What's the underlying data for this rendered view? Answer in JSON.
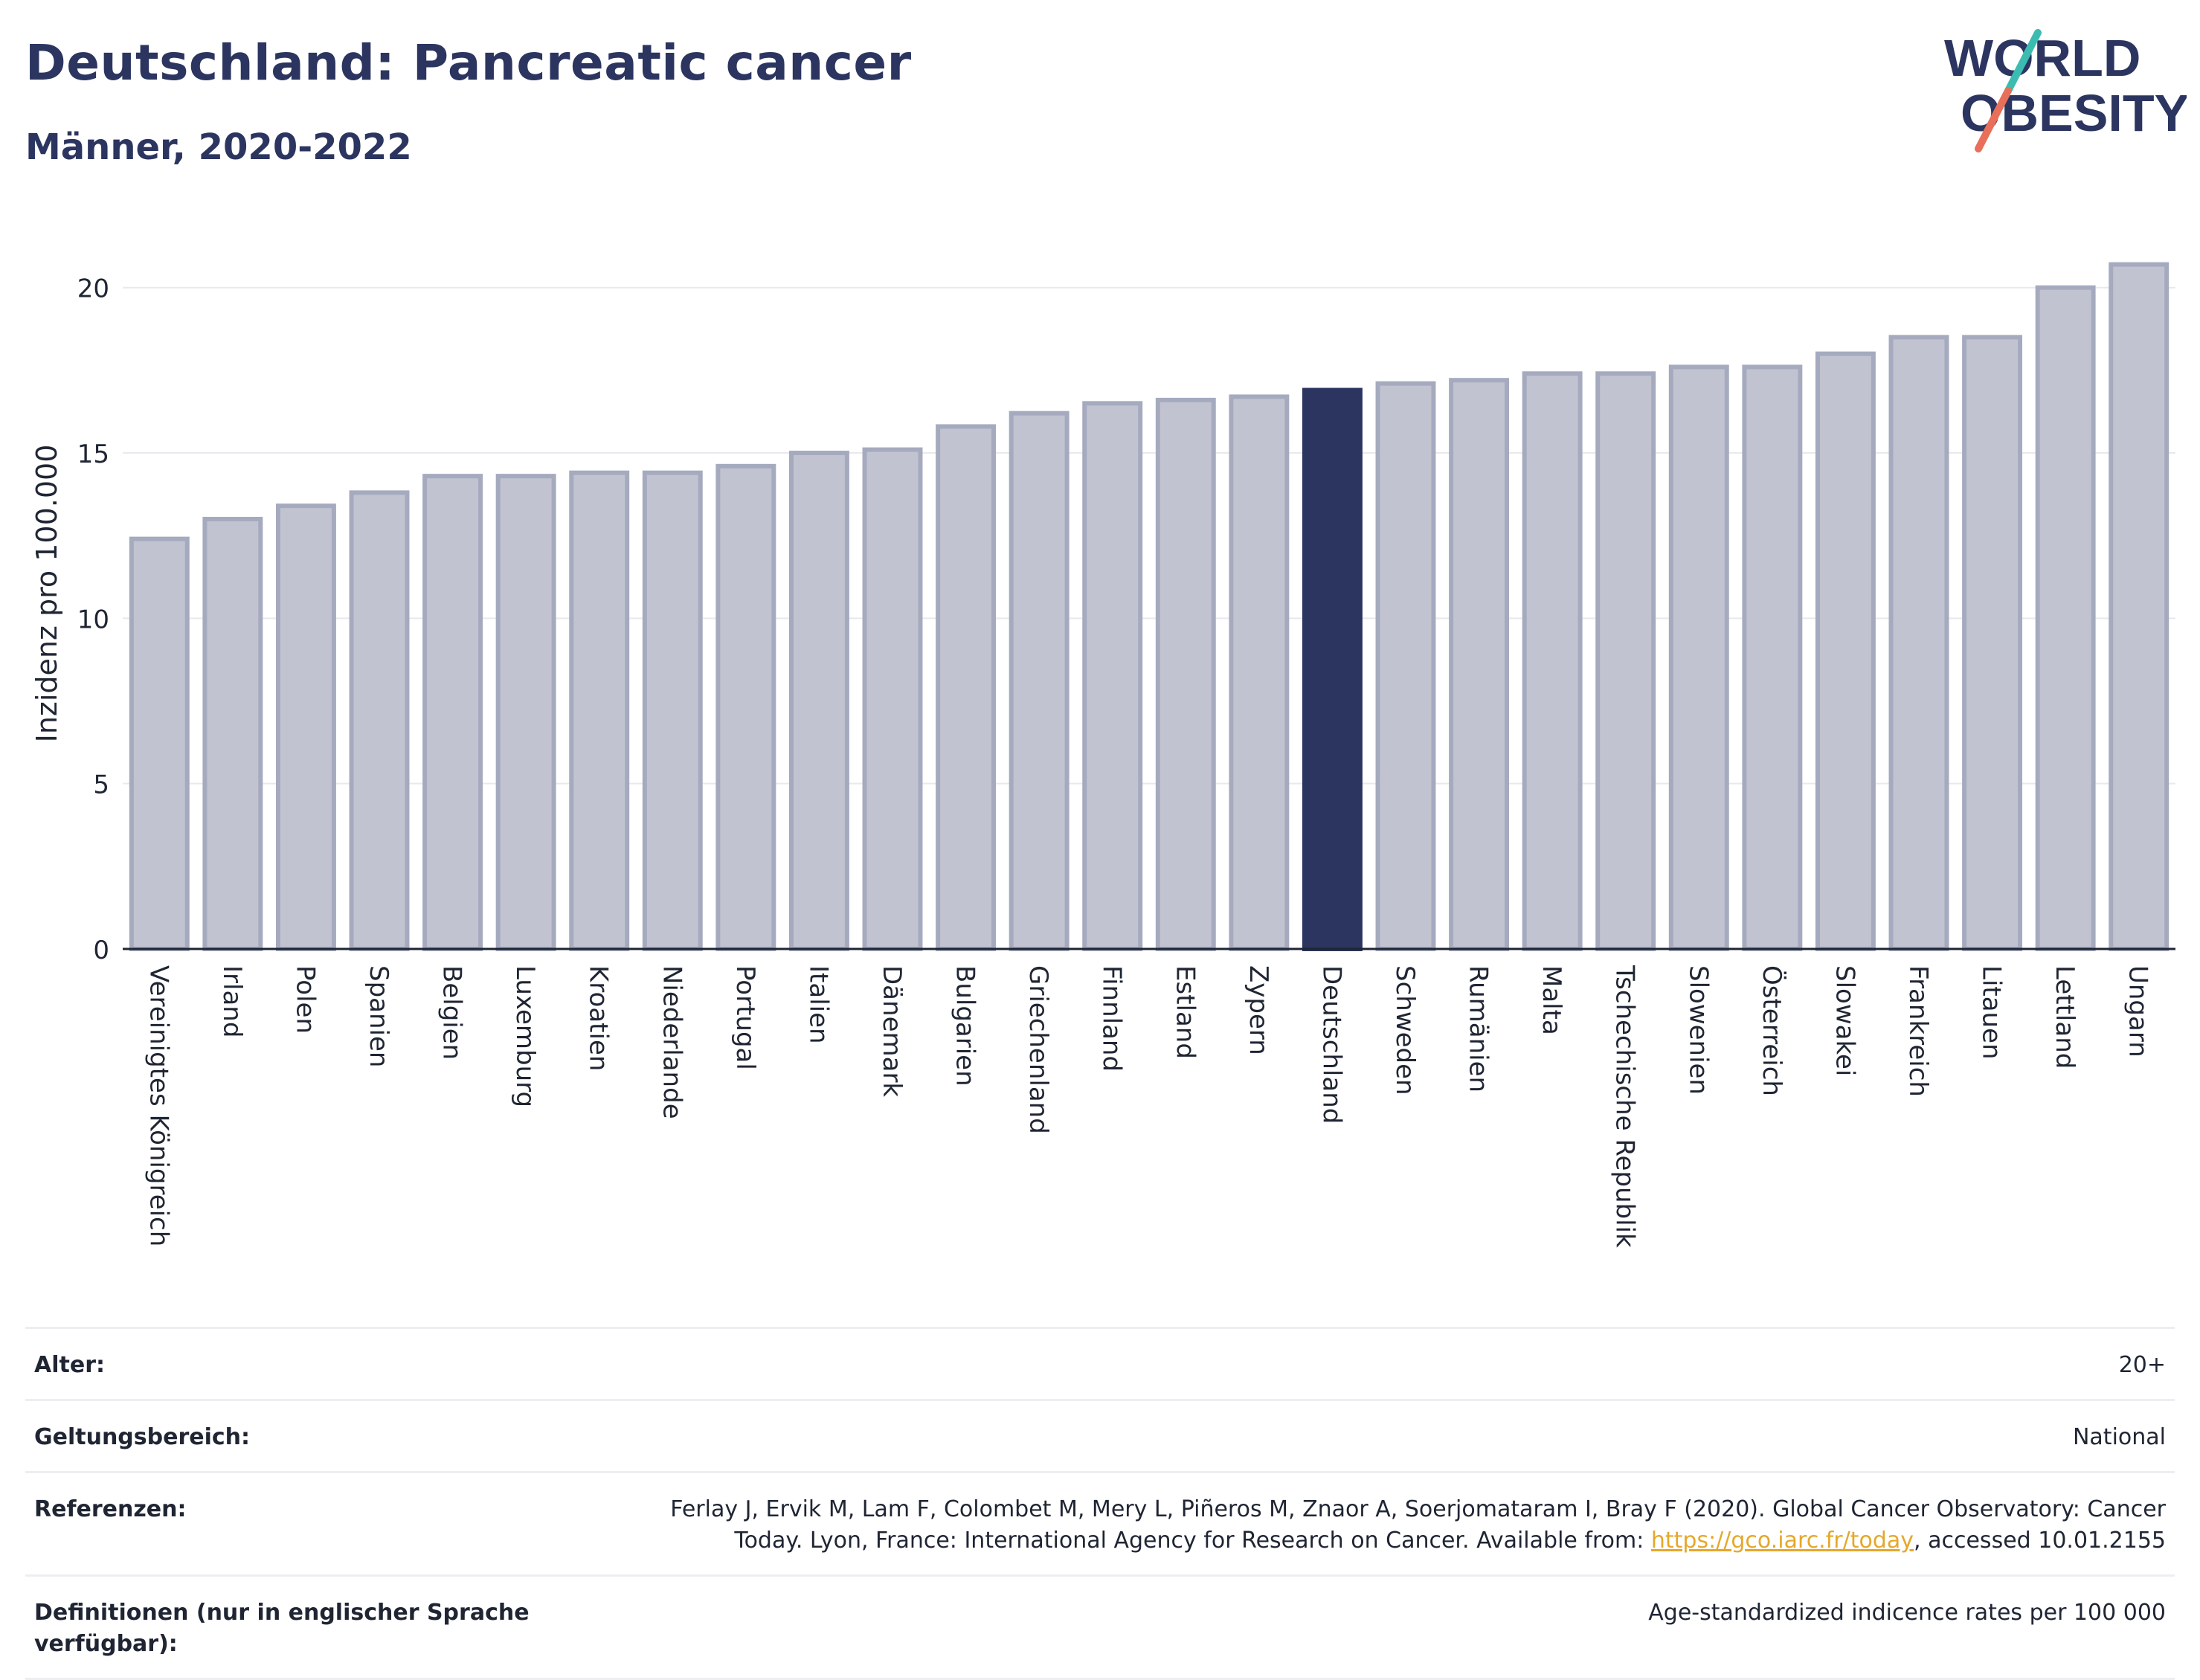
{
  "header": {
    "title": "Deutschland: Pancreatic cancer",
    "subtitle": "Männer, 2020-2022"
  },
  "logo": {
    "line1": "WORLD",
    "line2": "OBESITY",
    "colors": {
      "text": "#2b3560",
      "slash_top": "#3cbcb0",
      "slash_bottom": "#e8705a"
    }
  },
  "colors": {
    "bar_default": "#c1c4d0",
    "bar_default_stroke": "#a5aabf",
    "bar_highlight": "#2b3560",
    "grid": "#e8e9ee",
    "axis": "#1f2533"
  },
  "chart_data": {
    "type": "bar",
    "categories": [
      "Vereinigtes Königreich",
      "Irland",
      "Polen",
      "Spanien",
      "Belgien",
      "Luxemburg",
      "Kroatien",
      "Niederlande",
      "Portugal",
      "Italien",
      "Dänemark",
      "Bulgarien",
      "Griechenland",
      "Finnland",
      "Estland",
      "Zypern",
      "Deutschland",
      "Schweden",
      "Rumänien",
      "Malta",
      "Tschechische Republik",
      "Slowenien",
      "Österreich",
      "Slowakei",
      "Frankreich",
      "Litauen",
      "Lettland",
      "Ungarn"
    ],
    "values": [
      12.4,
      13.0,
      13.4,
      13.8,
      14.3,
      14.3,
      14.4,
      14.4,
      14.6,
      15.0,
      15.1,
      15.8,
      16.2,
      16.5,
      16.6,
      16.7,
      16.9,
      17.1,
      17.2,
      17.4,
      17.4,
      17.6,
      17.6,
      18.0,
      18.5,
      18.5,
      20.0,
      20.7
    ],
    "highlight": "Deutschland",
    "ylabel": "Inzidenz pro 100.000",
    "xlabel": "",
    "ylim": [
      0,
      21.5
    ],
    "yticks": [
      0,
      5,
      10,
      15,
      20
    ],
    "grid": true
  },
  "meta": {
    "age_label": "Alter:",
    "age_value": "20+",
    "scope_label": "Geltungsbereich:",
    "scope_value": "National",
    "refs_label": "Referenzen:",
    "refs_line1": "Ferlay J, Ervik M, Lam F, Colombet M, Mery L, Piñeros M, Znaor A, Soerjomataram I, Bray F (2020). Global Cancer Observatory: Cancer",
    "refs_line2_pre": "Today. Lyon, France: International Agency for Research on Cancer. Available from: ",
    "refs_link": "https://gco.iarc.fr/today",
    "refs_line2_post": ", accessed 10.01.2155",
    "defs_label": "Definitionen (nur in englischer Sprache verfügbar):",
    "defs_value": "Age-standardized indicence rates per 100 000"
  }
}
